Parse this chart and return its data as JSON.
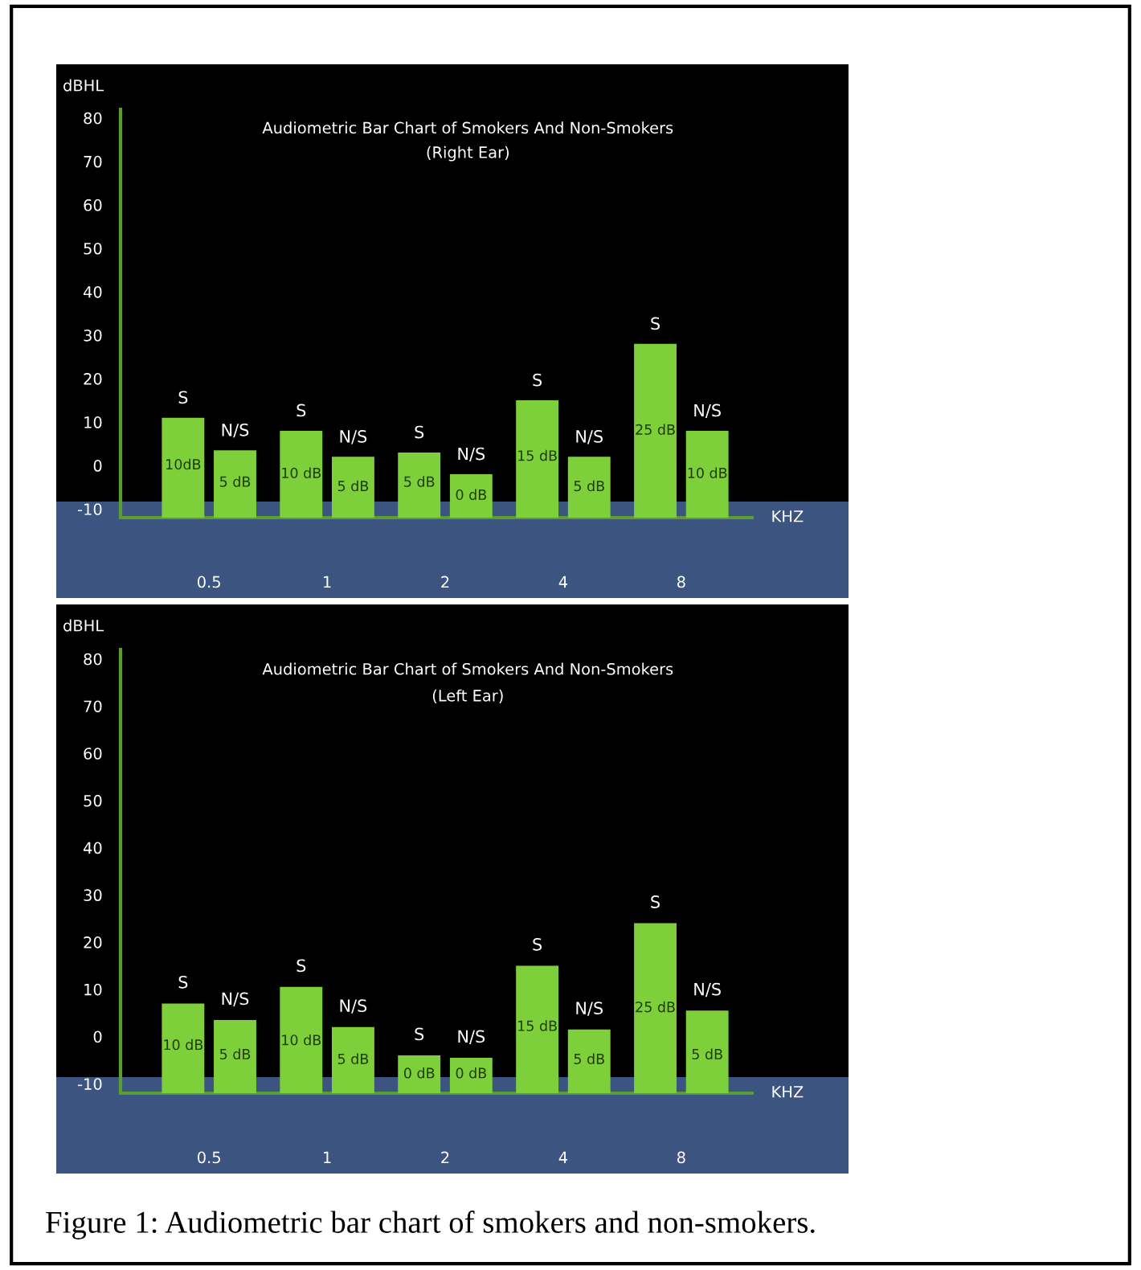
{
  "chart_data": [
    {
      "type": "bar",
      "title": "Audiometric Bar Chart of Smokers And Non-Smokers",
      "subtitle": "(Right Ear)",
      "xlabel": "KHZ",
      "ylabel": "dBHL",
      "categories": [
        "0.5",
        "1",
        "2",
        "4",
        "8"
      ],
      "series": [
        {
          "name": "S",
          "color": "#7ed03a",
          "base": [
            -12,
            -12,
            -12,
            -12,
            -12
          ],
          "values": [
            23,
            20,
            15,
            27,
            40
          ]
        },
        {
          "name": "N/S",
          "color": "#7ed03a",
          "base": [
            -12,
            -12,
            -12,
            -12,
            -12
          ],
          "values": [
            15.5,
            14,
            10,
            14,
            20
          ]
        }
      ],
      "ylim": [
        -12,
        82
      ],
      "yticks": [
        -10,
        0,
        10,
        20,
        30,
        40,
        50,
        60,
        70,
        80
      ],
      "legend": false,
      "annotations": [
        {
          "text": "10dB",
          "x": "0.5",
          "y": 0
        },
        {
          "text": "5 dB",
          "x": "0.5",
          "y": -4
        },
        {
          "text": "10 dB",
          "x": "1",
          "y": -2
        },
        {
          "text": "5 dB",
          "x": "1",
          "y": -5
        },
        {
          "text": "5 dB",
          "x": "2",
          "y": -4
        },
        {
          "text": "0 dB",
          "x": "2",
          "y": -7
        },
        {
          "text": "15 dB",
          "x": "4",
          "y": 2
        },
        {
          "text": "5 dB",
          "x": "4",
          "y": -5
        },
        {
          "text": "25 dB",
          "x": "8",
          "y": 8
        },
        {
          "text": "10 dB",
          "x": "8",
          "y": -2
        }
      ]
    },
    {
      "type": "bar",
      "title": "Audiometric Bar Chart of Smokers And Non-Smokers",
      "subtitle": "(Left Ear)",
      "xlabel": "KHZ",
      "ylabel": "dBHL",
      "categories": [
        "0.5",
        "1",
        "2",
        "4",
        "8"
      ],
      "series": [
        {
          "name": "S",
          "color": "#7ed03a",
          "base": [
            -12,
            -12,
            -12,
            -12,
            -12
          ],
          "values": [
            19,
            22.5,
            8,
            27,
            36
          ]
        },
        {
          "name": "N/S",
          "color": "#7ed03a",
          "base": [
            -12,
            -12,
            -12,
            -12,
            -12
          ],
          "values": [
            15.5,
            14,
            7.5,
            13.5,
            17.5
          ]
        }
      ],
      "ylim": [
        -12,
        82
      ],
      "yticks": [
        -10,
        0,
        10,
        20,
        30,
        40,
        50,
        60,
        70,
        80
      ],
      "legend": false,
      "annotations": [
        {
          "text": "10 dB",
          "x": "0.5",
          "y": -2
        },
        {
          "text": "5 dB",
          "x": "0.5",
          "y": -4
        },
        {
          "text": "10 dB",
          "x": "1",
          "y": -1
        },
        {
          "text": "5 dB",
          "x": "1",
          "y": -5
        },
        {
          "text": "0 dB",
          "x": "2",
          "y": -8
        },
        {
          "text": "0 dB",
          "x": "2",
          "y": -8
        },
        {
          "text": "15 dB",
          "x": "4",
          "y": 2
        },
        {
          "text": "5 dB",
          "x": "4",
          "y": -5
        },
        {
          "text": "25 dB",
          "x": "8",
          "y": 6
        },
        {
          "text": "5 dB",
          "x": "8",
          "y": -4
        },
        "Figure 1: Audiometric bar chart of smokers and non-smokers."
      ]
    }
  ]
}
